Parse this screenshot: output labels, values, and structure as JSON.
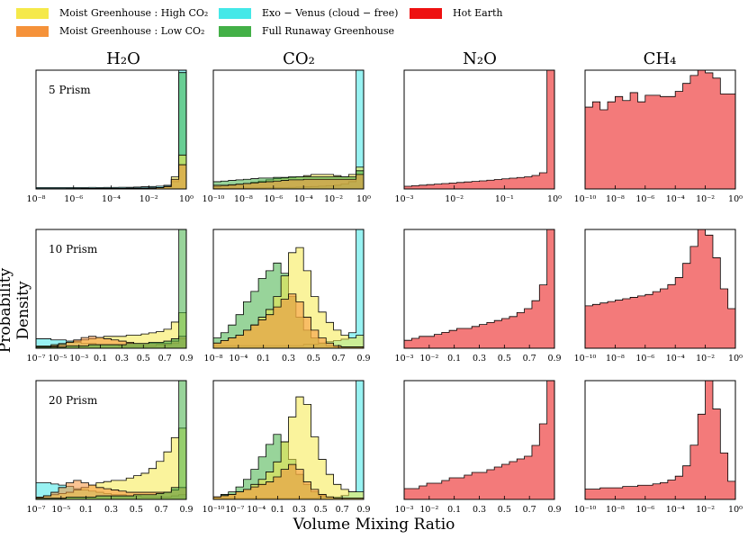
{
  "legend": [
    {
      "label": "Moist Greenhouse : High CO₂",
      "color": "#f5e94a"
    },
    {
      "label": "Moist Greenhouse : Low CO₂",
      "color": "#f5923a"
    },
    {
      "label": "Exo − Venus (cloud − free)",
      "color": "#44e8e8"
    },
    {
      "label": "Full Runaway Greenhouse",
      "color": "#43b047"
    },
    {
      "label": "Hot Earth",
      "color": "#ee1111"
    }
  ],
  "column_titles": [
    "H₂O",
    "CO₂",
    "N₂O",
    "CH₄"
  ],
  "ylabel": "Probability Density",
  "xlabel": "Volume Mixing Ratio",
  "chart_data": {
    "type": "histogram-grid",
    "rows": [
      "5 Prism",
      "10 Prism",
      "20 Prism"
    ],
    "columns": [
      "H₂O",
      "CO₂",
      "N₂O",
      "CH₄"
    ],
    "series_colors": {
      "high": "#f5e94a",
      "low": "#f5923a",
      "venus": "#44e8e8",
      "runaway": "#43b047",
      "hot": "#f26b6b"
    },
    "panels": [
      {
        "row": 0,
        "col": 0,
        "label": "5 Prism",
        "ticks": [
          "10⁻⁸",
          "10⁻⁶",
          "10⁻⁴",
          "10⁻²",
          "10⁰"
        ],
        "series": [
          {
            "key": "venus",
            "values": [
              1.2,
              1.2,
              1.2,
              1.2,
              1.2,
              1.2,
              1.2,
              1.3,
              1.2,
              1.3,
              1.3,
              1.4,
              1.4,
              1.6,
              1.8,
              2.0,
              2.3,
              3,
              6,
              98
            ]
          },
          {
            "key": "runaway",
            "values": [
              0.3,
              0.3,
              0.3,
              0.3,
              0.3,
              0.3,
              0.4,
              0.4,
              0.4,
              0.5,
              0.5,
              0.5,
              0.6,
              0.7,
              0.8,
              0.9,
              1.2,
              2,
              8,
              96
            ]
          },
          {
            "key": "high",
            "values": [
              0.2,
              0.2,
              0.2,
              0.2,
              0.3,
              0.3,
              0.3,
              0.3,
              0.3,
              0.4,
              0.4,
              0.4,
              0.5,
              0.6,
              0.7,
              0.9,
              1.2,
              2,
              10,
              28
            ]
          },
          {
            "key": "low",
            "values": [
              0.2,
              0.2,
              0.2,
              0.2,
              0.2,
              0.3,
              0.3,
              0.3,
              0.3,
              0.3,
              0.4,
              0.4,
              0.4,
              0.5,
              0.6,
              0.8,
              1.0,
              2,
              8,
              20
            ]
          }
        ]
      },
      {
        "row": 0,
        "col": 1,
        "label": "",
        "ticks": [
          "10⁻¹⁰",
          "10⁻⁸",
          "10⁻⁶",
          "10⁻⁴",
          "10⁻²",
          "10⁰"
        ],
        "series": [
          {
            "key": "venus",
            "values": [
              0.5,
              0.5,
              0.6,
              0.6,
              0.7,
              0.8,
              0.9,
              1.0,
              1.1,
              1.2,
              1.3,
              1.5,
              1.7,
              2.0,
              2.3,
              2.6,
              3.0,
              4,
              6,
              98
            ]
          },
          {
            "key": "high",
            "values": [
              2,
              2.5,
              3,
              3.5,
              4.5,
              5.5,
              6.5,
              7.5,
              8.5,
              9,
              9.5,
              10,
              11,
              12,
              12,
              12,
              11,
              10,
              12,
              18
            ]
          },
          {
            "key": "runaway",
            "values": [
              6,
              6.5,
              7,
              7.5,
              8,
              8.5,
              9,
              9,
              9.5,
              9.5,
              10,
              10,
              10,
              10,
              10,
              10,
              10,
              10,
              10,
              15
            ]
          },
          {
            "key": "low",
            "values": [
              3,
              3,
              3.5,
              4,
              4.5,
              5,
              5.5,
              6,
              6.5,
              7,
              7.5,
              7.5,
              8,
              8,
              8,
              8,
              8,
              8,
              8,
              12
            ]
          }
        ]
      },
      {
        "row": 0,
        "col": 2,
        "label": "",
        "ticks": [
          "10⁻³",
          "10⁻²",
          "10⁻¹",
          "10⁰"
        ],
        "series": [
          {
            "key": "hot",
            "values": [
              2,
              2.4,
              2.8,
              3.2,
              3.6,
              4,
              4.4,
              4.8,
              5.2,
              5.6,
              6,
              6.5,
              7,
              7.5,
              8,
              8.5,
              9,
              10,
              12,
              88
            ]
          }
        ]
      },
      {
        "row": 0,
        "col": 3,
        "label": "",
        "ticks": [
          "10⁻¹⁰",
          "10⁻⁸",
          "10⁻⁶",
          "10⁻⁴",
          "10⁻²",
          "10⁰"
        ],
        "series": [
          {
            "key": "hot",
            "values": [
              62,
              66,
              60,
              66,
              70,
              67,
              73,
              66,
              71,
              71,
              70,
              70,
              74,
              80,
              86,
              90,
              88,
              84,
              72,
              72
            ]
          }
        ]
      },
      {
        "row": 1,
        "col": 0,
        "label": "10 Prism",
        "ticks": [
          "10⁻⁷",
          "10⁻⁵",
          "10⁻³",
          "0.1",
          "0.3",
          "0.5",
          "0.7",
          "0.9"
        ],
        "series": [
          {
            "key": "venus",
            "values": [
              8,
              8,
              7,
              7,
              6,
              5,
              4,
              4,
              3,
              3,
              3,
              2,
              2,
              2,
              2,
              2,
              3,
              3,
              4,
              8
            ]
          },
          {
            "key": "high",
            "values": [
              2,
              2,
              3,
              4,
              5,
              6,
              7,
              8,
              9,
              10,
              10,
              10,
              11,
              11,
              12,
              13,
              14,
              16,
              22,
              30
            ]
          },
          {
            "key": "low",
            "values": [
              1,
              1,
              2,
              3,
              5,
              7,
              9,
              10,
              9,
              8,
              7,
              6,
              5,
              4,
              4,
              4,
              4,
              4,
              6,
              10
            ]
          },
          {
            "key": "runaway",
            "values": [
              1,
              1,
              1,
              1,
              2,
              2,
              2,
              3,
              3,
              3,
              3,
              3,
              4,
              4,
              4,
              5,
              5,
              6,
              8,
              100
            ]
          }
        ]
      },
      {
        "row": 1,
        "col": 1,
        "label": "",
        "ticks": [
          "10⁻⁸",
          "10⁻⁴",
          "0.1",
          "0.3",
          "0.5",
          "0.7",
          "0.9"
        ],
        "series": [
          {
            "key": "venus",
            "values": [
              2,
              2,
              2,
              2,
              2,
              2,
              2,
              2,
              2,
              2,
              2,
              2,
              3,
              3,
              4,
              5,
              6,
              7,
              12,
              92
            ]
          },
          {
            "key": "runaway",
            "values": [
              8,
              12,
              18,
              26,
              36,
              44,
              54,
              60,
              66,
              58,
              40,
              24,
              14,
              8,
              4,
              2,
              1,
              1,
              1,
              1
            ]
          },
          {
            "key": "high",
            "values": [
              4,
              6,
              8,
              10,
              14,
              18,
              24,
              30,
              40,
              56,
              74,
              78,
              60,
              40,
              28,
              20,
              14,
              10,
              8,
              10
            ]
          },
          {
            "key": "low",
            "values": [
              4,
              6,
              8,
              10,
              14,
              18,
              22,
              26,
              32,
              38,
              42,
              36,
              24,
              14,
              8,
              4,
              2,
              1,
              1,
              1
            ]
          }
        ]
      },
      {
        "row": 1,
        "col": 2,
        "label": "",
        "ticks": [
          "10⁻³",
          "10⁻²",
          "0.1",
          "0.3",
          "0.5",
          "0.7",
          "0.9"
        ],
        "series": [
          {
            "key": "hot",
            "values": [
              2,
              2.5,
              3,
              3,
              3.5,
              4,
              4.5,
              5,
              5,
              5.5,
              6,
              6.5,
              7,
              7.5,
              8,
              9,
              10,
              12,
              16,
              30
            ]
          }
        ]
      },
      {
        "row": 1,
        "col": 3,
        "label": "",
        "ticks": [
          "10⁻¹⁰",
          "10⁻⁸",
          "10⁻⁶",
          "10⁻⁴",
          "10⁻²",
          "10⁰"
        ],
        "series": [
          {
            "key": "hot",
            "values": [
              30,
              31,
              32,
              33,
              34,
              35,
              36,
              37,
              38,
              40,
              42,
              45,
              50,
              60,
              72,
              84,
              80,
              64,
              42,
              28
            ]
          }
        ]
      },
      {
        "row": 2,
        "col": 0,
        "label": "20 Prism",
        "ticks": [
          "10⁻⁷",
          "10⁻⁵",
          "0.1",
          "0.3",
          "0.5",
          "0.7",
          "0.9"
        ],
        "series": [
          {
            "key": "venus",
            "values": [
              14,
              14,
              13,
              12,
              11,
              9,
              8,
              7,
              6,
              5,
              4,
              4,
              3,
              3,
              2,
              2,
              2,
              2,
              3,
              4
            ]
          },
          {
            "key": "high",
            "values": [
              2,
              3,
              4,
              5,
              6,
              8,
              10,
              12,
              14,
              15,
              16,
              16,
              18,
              20,
              22,
              26,
              32,
              40,
              52,
              60
            ]
          },
          {
            "key": "low",
            "values": [
              2,
              3,
              6,
              10,
              14,
              16,
              14,
              12,
              10,
              9,
              8,
              7,
              6,
              6,
              6,
              6,
              6,
              6,
              8,
              10
            ]
          },
          {
            "key": "runaway",
            "values": [
              1,
              1,
              1,
              1,
              2,
              2,
              2,
              2,
              3,
              3,
              3,
              3,
              3,
              4,
              4,
              4,
              5,
              6,
              10,
              100
            ]
          }
        ]
      },
      {
        "row": 2,
        "col": 1,
        "label": "",
        "ticks": [
          "10⁻¹⁰",
          "10⁻⁷",
          "10⁻⁴",
          "0.1",
          "0.3",
          "0.5",
          "0.7",
          "0.9"
        ],
        "series": [
          {
            "key": "venus",
            "values": [
              1,
              1,
              1,
              1,
              1,
              1,
              1,
              1,
              1,
              1,
              1,
              1,
              1,
              1,
              2,
              2,
              2,
              3,
              6,
              95
            ]
          },
          {
            "key": "runaway",
            "values": [
              2,
              4,
              6,
              10,
              16,
              24,
              34,
              44,
              52,
              46,
              32,
              20,
              12,
              6,
              3,
              2,
              1,
              1,
              1,
              1
            ]
          },
          {
            "key": "high",
            "values": [
              2,
              3,
              4,
              6,
              8,
              12,
              16,
              22,
              30,
              46,
              66,
              82,
              76,
              50,
              32,
              20,
              12,
              8,
              6,
              6
            ]
          },
          {
            "key": "low",
            "values": [
              2,
              3,
              4,
              6,
              8,
              10,
              12,
              14,
              18,
              24,
              28,
              24,
              14,
              8,
              4,
              2,
              1,
              1,
              1,
              1
            ]
          }
        ]
      },
      {
        "row": 2,
        "col": 2,
        "label": "",
        "ticks": [
          "10⁻³",
          "10⁻²",
          "0.1",
          "0.3",
          "0.5",
          "0.7",
          "0.9"
        ],
        "series": [
          {
            "key": "hot",
            "values": [
              2,
              2,
              2.5,
              3,
              3,
              3.5,
              4,
              4,
              4.5,
              5,
              5,
              5.5,
              6,
              6.5,
              7,
              7.5,
              8,
              10,
              14,
              22
            ]
          }
        ]
      },
      {
        "row": 2,
        "col": 3,
        "label": "",
        "ticks": [
          "10⁻¹⁰",
          "10⁻⁸",
          "10⁻⁶",
          "10⁻⁴",
          "10⁻²",
          "10⁰"
        ],
        "series": [
          {
            "key": "hot",
            "values": [
              8,
              8,
              9,
              9,
              9,
              10,
              10,
              11,
              11,
              12,
              13,
              15,
              18,
              26,
              42,
              66,
              92,
              70,
              36,
              14
            ]
          }
        ]
      }
    ]
  }
}
